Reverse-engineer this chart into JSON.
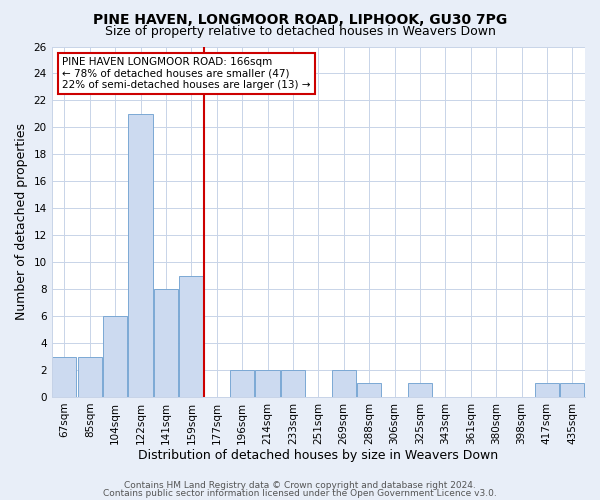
{
  "title": "PINE HAVEN, LONGMOOR ROAD, LIPHOOK, GU30 7PG",
  "subtitle": "Size of property relative to detached houses in Weavers Down",
  "xlabel": "Distribution of detached houses by size in Weavers Down",
  "ylabel": "Number of detached properties",
  "categories": [
    "67sqm",
    "85sqm",
    "104sqm",
    "122sqm",
    "141sqm",
    "159sqm",
    "177sqm",
    "196sqm",
    "214sqm",
    "233sqm",
    "251sqm",
    "269sqm",
    "288sqm",
    "306sqm",
    "325sqm",
    "343sqm",
    "361sqm",
    "380sqm",
    "398sqm",
    "417sqm",
    "435sqm"
  ],
  "values": [
    3,
    3,
    6,
    21,
    8,
    9,
    0,
    2,
    2,
    2,
    0,
    2,
    1,
    0,
    1,
    0,
    0,
    0,
    0,
    1,
    1
  ],
  "bar_color": "#ccdaf0",
  "bar_edge_color": "#7ba8d4",
  "vline_x_index": 6,
  "vline_color": "#cc0000",
  "ylim": [
    0,
    26
  ],
  "yticks": [
    0,
    2,
    4,
    6,
    8,
    10,
    12,
    14,
    16,
    18,
    20,
    22,
    24,
    26
  ],
  "annotation_title": "PINE HAVEN LONGMOOR ROAD: 166sqm",
  "annotation_line1": "← 78% of detached houses are smaller (47)",
  "annotation_line2": "22% of semi-detached houses are larger (13) →",
  "footer_line1": "Contains HM Land Registry data © Crown copyright and database right 2024.",
  "footer_line2": "Contains public sector information licensed under the Open Government Licence v3.0.",
  "background_color": "#e8eef8",
  "plot_background_color": "#ffffff",
  "title_fontsize": 10,
  "subtitle_fontsize": 9,
  "axis_label_fontsize": 9,
  "tick_fontsize": 7.5,
  "footer_fontsize": 6.5,
  "grid_color": "#c8d4e8"
}
